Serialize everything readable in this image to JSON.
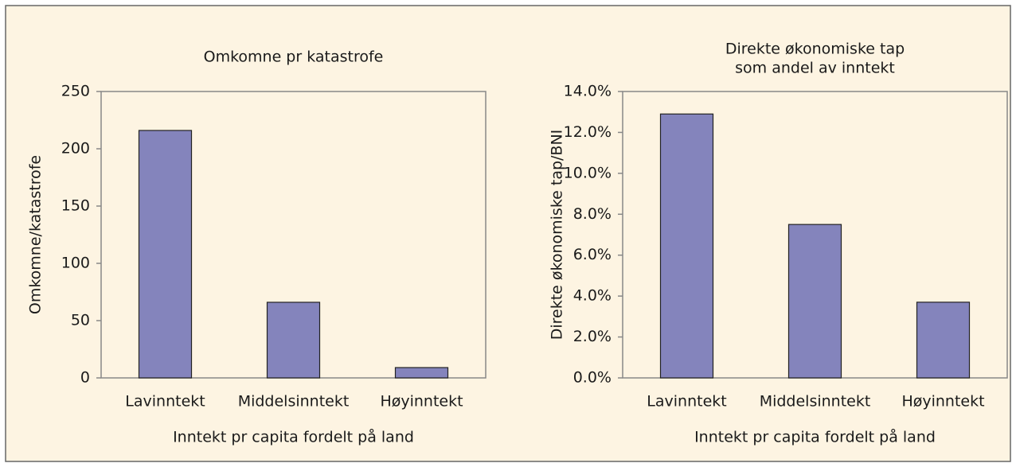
{
  "chart_data": [
    {
      "type": "bar",
      "title": [
        "Omkomne pr katastrofe"
      ],
      "ylabel": "Omkomne/katastrofe",
      "xlabel": "Inntekt pr capita fordelt på land",
      "categories": [
        "Lavinntekt",
        "Middelsinntekt",
        "Høyinntekt"
      ],
      "values": [
        216,
        66,
        9
      ],
      "color": "#8484bc",
      "ylim": [
        0,
        250
      ],
      "yticks": [
        0,
        50,
        100,
        150,
        200,
        250
      ]
    },
    {
      "type": "bar",
      "title": [
        "Direkte økonomiske tap",
        "som andel av inntekt"
      ],
      "ylabel": "Direkte økonomiske tap/BNI",
      "xlabel": "Inntekt pr capita fordelt på land",
      "categories": [
        "Lavinntekt",
        "Middelsinntekt",
        "Høyinntekt"
      ],
      "values": [
        12.9,
        7.5,
        3.7
      ],
      "color": "#8484bc",
      "ylim": [
        0,
        14
      ],
      "yticks": [
        {
          "value": 0,
          "label": "0.0%"
        },
        {
          "value": 2,
          "label": "2.0%"
        },
        {
          "value": 4,
          "label": "4.0%"
        },
        {
          "value": 6,
          "label": "6.0%"
        },
        {
          "value": 8,
          "label": "8.0%"
        },
        {
          "value": 10,
          "label": "10.0%"
        },
        {
          "value": 12,
          "label": "12.0%"
        },
        {
          "value": 14,
          "label": "14.0%"
        }
      ]
    }
  ]
}
